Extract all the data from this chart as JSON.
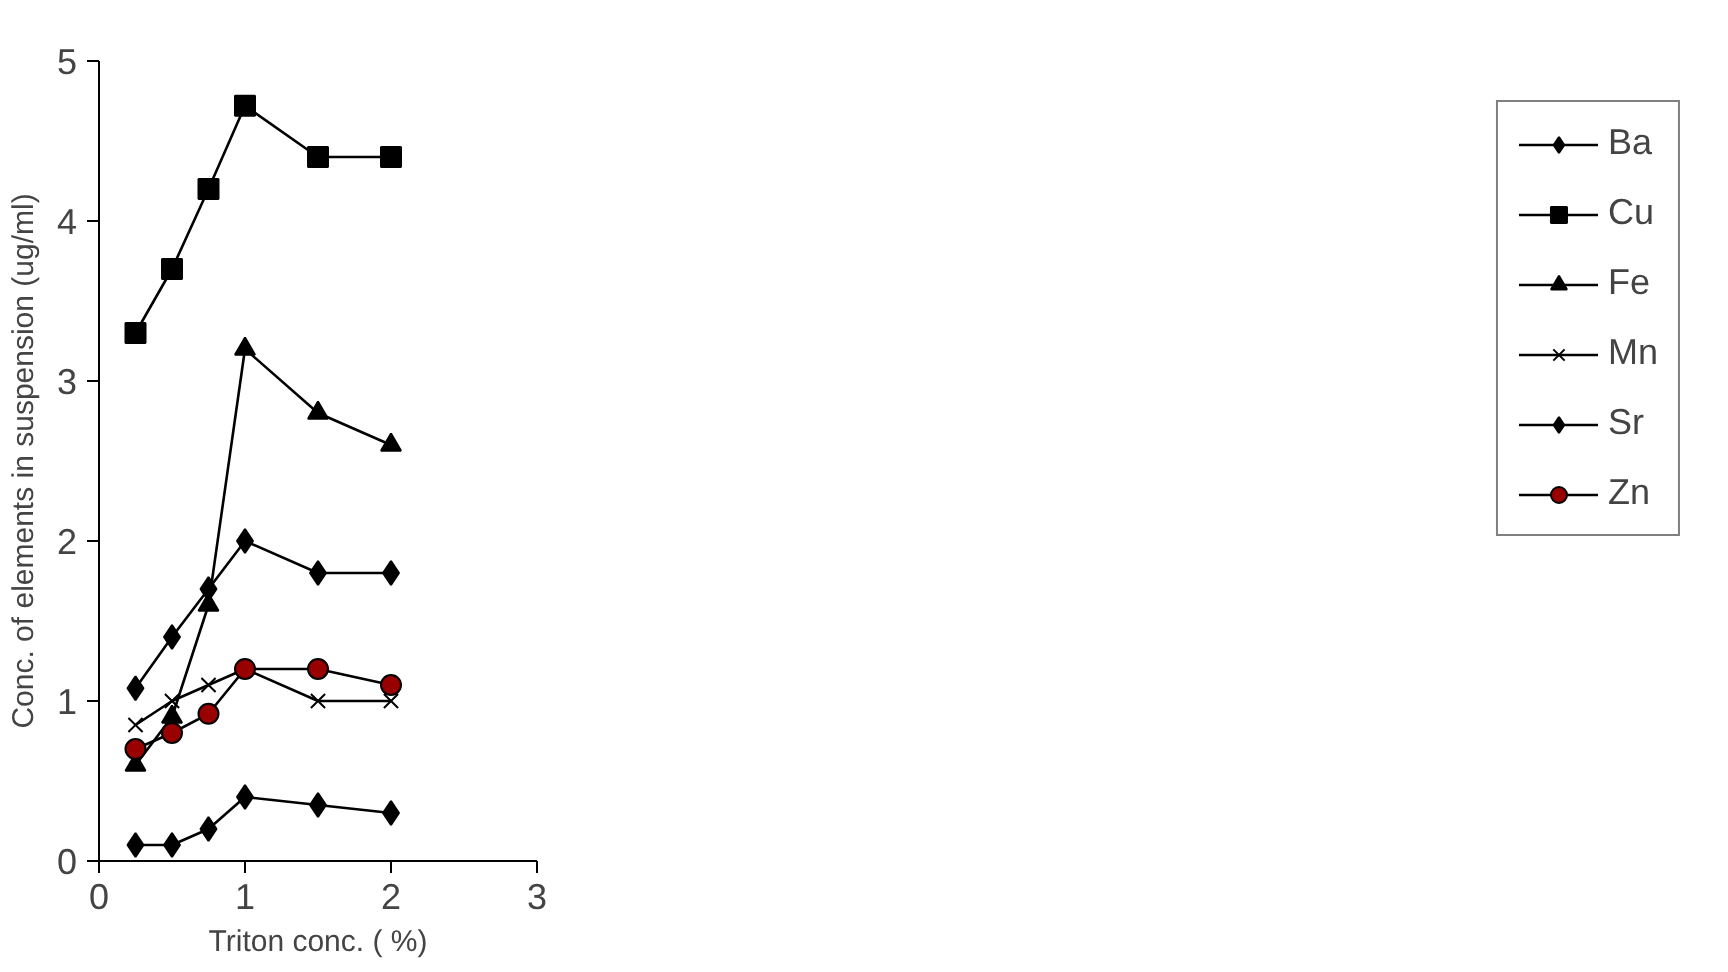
{
  "chart_data": {
    "type": "line",
    "xlabel": "Triton conc. ( %)",
    "ylabel": "Conc. of elements in suspension (ug/ml)",
    "x": [
      0.25,
      0.5,
      0.75,
      1,
      1.5,
      2
    ],
    "xlim": [
      0,
      3
    ],
    "xticks": [
      0,
      1,
      2,
      3
    ],
    "ylim": [
      0,
      5
    ],
    "yticks": [
      0,
      1,
      2,
      3,
      4,
      5
    ],
    "grid": false,
    "legend": "right",
    "series": [
      {
        "name": "Ba",
        "color": "#000000",
        "marker": "diamond",
        "values": [
          0.1,
          0.1,
          0.2,
          0.4,
          0.35,
          0.3
        ]
      },
      {
        "name": "Cu",
        "color": "#000000",
        "marker": "square",
        "values": [
          3.3,
          3.7,
          4.2,
          4.72,
          4.4,
          4.4
        ]
      },
      {
        "name": "Fe",
        "color": "#000000",
        "marker": "triangle",
        "values": [
          0.6,
          0.9,
          1.6,
          3.2,
          2.8,
          2.6
        ]
      },
      {
        "name": "Mn",
        "color": "#000000",
        "marker": "cross",
        "values": [
          0.85,
          1.0,
          1.1,
          1.2,
          1.0,
          1.0
        ]
      },
      {
        "name": "Sr",
        "color": "#000000",
        "marker": "diamond",
        "values": [
          1.08,
          1.4,
          1.7,
          2.0,
          1.8,
          1.8
        ]
      },
      {
        "name": "Zn",
        "color": "#990000",
        "marker": "circle",
        "values": [
          0.7,
          0.8,
          0.92,
          1.2,
          1.2,
          1.1
        ]
      }
    ]
  }
}
